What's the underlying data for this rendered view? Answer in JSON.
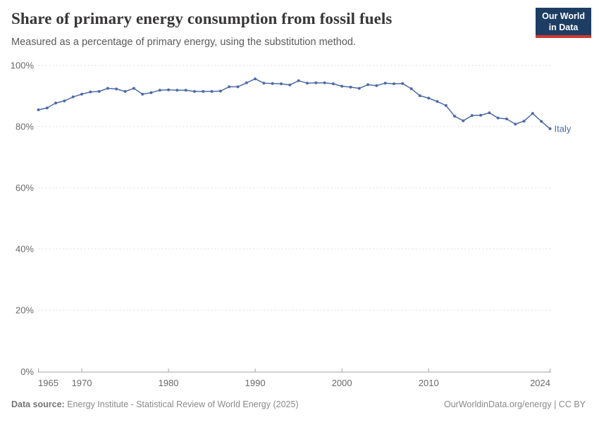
{
  "header": {
    "title": "Share of primary energy consumption from fossil fuels",
    "subtitle": "Measured as a percentage of primary energy, using the substitution method."
  },
  "logo": {
    "line1": "Our World",
    "line2": "in Data",
    "bg_color": "#1d3d63",
    "accent_color": "#cf3a2f"
  },
  "chart_data": {
    "type": "line",
    "title": "Share of primary energy consumption from fossil fuels",
    "xlabel": "",
    "ylabel": "",
    "xlim": [
      1965,
      2024
    ],
    "ylim": [
      0,
      100
    ],
    "grid": "horizontal-dashed",
    "x_ticks": [
      1965,
      1970,
      1980,
      1990,
      2000,
      2010,
      2024
    ],
    "x_tick_labels": [
      "1965",
      "1970",
      "1980",
      "1990",
      "2000",
      "2010",
      "2024"
    ],
    "y_ticks": [
      0,
      20,
      40,
      60,
      80,
      100
    ],
    "y_tick_labels": [
      "0%",
      "20%",
      "40%",
      "60%",
      "80%",
      "100%"
    ],
    "legend_position": "end-of-line-label",
    "series": [
      {
        "name": "Italy",
        "color": "#4c6ba8",
        "x": [
          1965,
          1966,
          1967,
          1968,
          1969,
          1970,
          1971,
          1972,
          1973,
          1974,
          1975,
          1976,
          1977,
          1978,
          1979,
          1980,
          1981,
          1982,
          1983,
          1984,
          1985,
          1986,
          1987,
          1988,
          1989,
          1990,
          1991,
          1992,
          1993,
          1994,
          1995,
          1996,
          1997,
          1998,
          1999,
          2000,
          2001,
          2002,
          2003,
          2004,
          2005,
          2006,
          2007,
          2008,
          2009,
          2010,
          2011,
          2012,
          2013,
          2014,
          2015,
          2016,
          2017,
          2018,
          2019,
          2020,
          2021,
          2022,
          2023,
          2024
        ],
        "values": [
          85.5,
          86.1,
          87.7,
          88.4,
          89.7,
          90.6,
          91.3,
          91.5,
          92.5,
          92.3,
          91.5,
          92.5,
          90.6,
          91.1,
          91.9,
          92.0,
          91.9,
          91.9,
          91.5,
          91.5,
          91.5,
          91.6,
          93.0,
          93.0,
          94.3,
          95.6,
          94.2,
          94.1,
          94.0,
          93.6,
          95.0,
          94.2,
          94.3,
          94.3,
          94.0,
          93.2,
          92.9,
          92.5,
          93.7,
          93.4,
          94.2,
          94.0,
          94.1,
          92.4,
          90.1,
          89.3,
          88.2,
          86.9,
          83.4,
          81.9,
          83.6,
          83.7,
          84.5,
          82.8,
          82.5,
          80.8,
          81.8,
          84.3,
          81.7,
          79.3
        ]
      }
    ]
  },
  "footer": {
    "source_label": "Data source:",
    "source_text": "Energy Institute - Statistical Review of World Energy (2025)",
    "right_text": "OurWorldinData.org/energy | CC BY"
  },
  "colors": {
    "grid": "#dcdcdc",
    "axis": "#a3a3a3",
    "tick_label": "#696969",
    "line": "#4c6ba8"
  }
}
